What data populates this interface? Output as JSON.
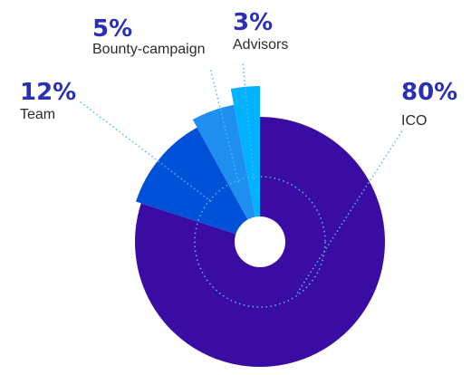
{
  "chart_data": {
    "type": "pie",
    "title": "",
    "slices": [
      {
        "label": "ICO",
        "value": 80,
        "value_text": "80%",
        "color": "#3a0ca3"
      },
      {
        "label": "Team",
        "value": 12,
        "value_text": "12%",
        "color": "#0050d8"
      },
      {
        "label": "Bounty-campaign",
        "value": 5,
        "value_text": "5%",
        "color": "#1f8ef1"
      },
      {
        "label": "Advisors",
        "value": 3,
        "value_text": "3%",
        "color": "#00b2ff"
      }
    ],
    "percent_label_color": "#2a2fb8",
    "leader_line_color": "#58b8f2"
  }
}
